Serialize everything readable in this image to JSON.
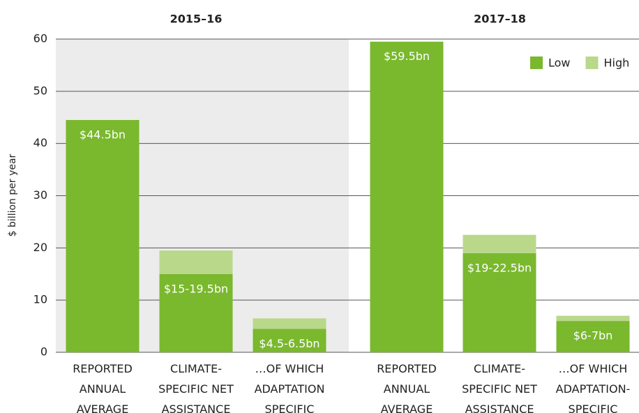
{
  "chart_data": {
    "type": "stacked_bar",
    "group_labels": [
      "2015–16",
      "2017–18"
    ],
    "categories": [
      "REPORTED ANNUAL AVERAGE",
      "CLIMATE-SPECIFIC NET ASSISTANCE",
      "…OF WHICH ADAPTATION SPECIFIC",
      "REPORTED ANNUAL AVERAGE",
      "CLIMATE-SPECIFIC NET ASSISTANCE",
      "…OF WHICH ADAPTATION-SPECIFIC"
    ],
    "category_groups": [
      0,
      0,
      0,
      1,
      1,
      1
    ],
    "series": [
      {
        "name": "Low",
        "color": "#7ab82e",
        "values": [
          44.5,
          15,
          4.5,
          59.5,
          19,
          6
        ],
        "value_labels": [
          "$44.5bn",
          "$15-19.5bn",
          "$4.5-6.5bn",
          "$59.5bn",
          "$19-22.5bn",
          "$6-7bn"
        ]
      },
      {
        "name": "High",
        "color": "#b9d88a",
        "values": [
          0,
          4.5,
          2,
          0,
          3.5,
          1
        ]
      }
    ],
    "ylabel": "$ billion per year",
    "ylim": [
      0,
      60
    ],
    "yticks": [
      0,
      10,
      20,
      30,
      40,
      50,
      60
    ],
    "grid": true,
    "legend": "top-right"
  }
}
